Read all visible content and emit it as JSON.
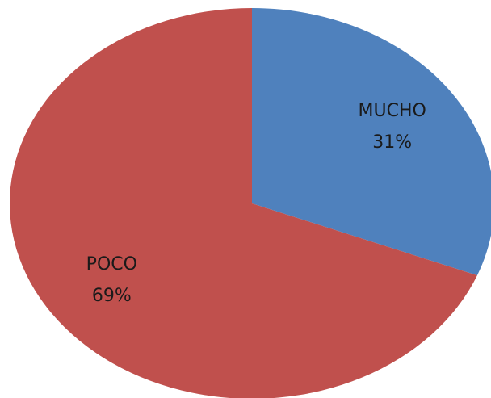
{
  "chart_data": {
    "type": "pie",
    "categories": [
      "MUCHO",
      "POCO"
    ],
    "values": [
      31,
      69
    ],
    "value_labels": [
      "31%",
      "69%"
    ],
    "colors": [
      "#4f81bd",
      "#c0504d"
    ]
  }
}
